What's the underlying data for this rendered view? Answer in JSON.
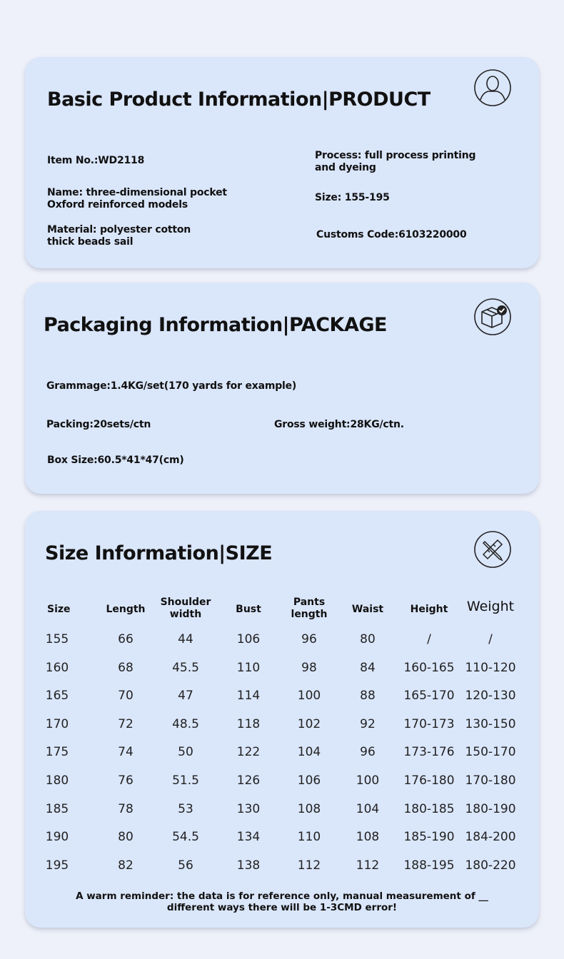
{
  "product": {
    "title": "Basic Product Information|PRODUCT",
    "icon": "person-icon",
    "item_no": "Item No.:WD2118",
    "name": [
      "Name: three-dimensional pocket",
      "Oxford reinforced models"
    ],
    "material": [
      "Material: polyester cotton",
      "thick beads sail"
    ],
    "process": [
      "Process: full process printing",
      "and dyeing"
    ],
    "size": "Size: 155-195",
    "customs": "Customs Code:6103220000"
  },
  "package": {
    "title": "Packaging Information|PACKAGE",
    "icon": "box-check-icon",
    "grammage": "Grammage:1.4KG/set(170 yards for example)",
    "packing": "Packing:20sets/ctn",
    "gross": "Gross weight:28KG/ctn.",
    "box": "Box Size:60.5*41*47(cm)"
  },
  "size_info": {
    "title": "Size Information|SIZE",
    "icon": "ruler-pencil-icon",
    "headers": [
      "Size",
      "Length",
      [
        "Shoulder",
        "width"
      ],
      "Bust",
      [
        "Pants",
        "length"
      ],
      "Waist",
      "Height",
      "Weight"
    ],
    "rows": [
      [
        "155",
        "66",
        "44",
        "106",
        "96",
        "80",
        "/",
        "/"
      ],
      [
        "160",
        "68",
        "45.5",
        "110",
        "98",
        "84",
        "160-165",
        "110-120"
      ],
      [
        "165",
        "70",
        "47",
        "114",
        "100",
        "88",
        "165-170",
        "120-130"
      ],
      [
        "170",
        "72",
        "48.5",
        "118",
        "102",
        "92",
        "170-173",
        "130-150"
      ],
      [
        "175",
        "74",
        "50",
        "122",
        "104",
        "96",
        "173-176",
        "150-170"
      ],
      [
        "180",
        "76",
        "51.5",
        "126",
        "106",
        "100",
        "176-180",
        "170-180"
      ],
      [
        "185",
        "78",
        "53",
        "130",
        "108",
        "104",
        "180-185",
        "180-190"
      ],
      [
        "190",
        "80",
        "54.5",
        "134",
        "110",
        "108",
        "185-190",
        "184-200"
      ],
      [
        "195",
        "82",
        "56",
        "138",
        "112",
        "112",
        "188-195",
        "180-220"
      ]
    ],
    "note": [
      "A warm reminder: the data is for reference only, manual measurement of  __",
      "different ways there will be 1-3CMD error!"
    ]
  }
}
